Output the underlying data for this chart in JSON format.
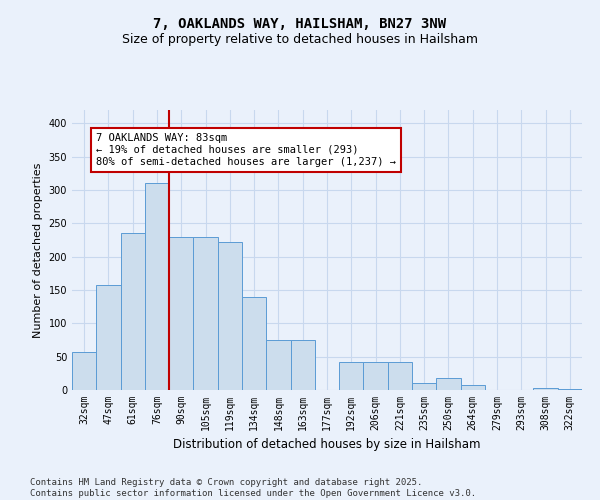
{
  "title_line1": "7, OAKLANDS WAY, HAILSHAM, BN27 3NW",
  "title_line2": "Size of property relative to detached houses in Hailsham",
  "xlabel": "Distribution of detached houses by size in Hailsham",
  "ylabel": "Number of detached properties",
  "categories": [
    "32sqm",
    "47sqm",
    "61sqm",
    "76sqm",
    "90sqm",
    "105sqm",
    "119sqm",
    "134sqm",
    "148sqm",
    "163sqm",
    "177sqm",
    "192sqm",
    "206sqm",
    "221sqm",
    "235sqm",
    "250sqm",
    "264sqm",
    "279sqm",
    "293sqm",
    "308sqm",
    "322sqm"
  ],
  "values": [
    57,
    157,
    235,
    310,
    230,
    230,
    222,
    140,
    75,
    75,
    0,
    42,
    42,
    42,
    10,
    18,
    7,
    0,
    0,
    3,
    2
  ],
  "bar_color": "#ccdded",
  "bar_edge_color": "#5b9bd5",
  "vline_x_idx": 3,
  "vline_color": "#c00000",
  "annotation_text": "7 OAKLANDS WAY: 83sqm\n← 19% of detached houses are smaller (293)\n80% of semi-detached houses are larger (1,237) →",
  "annotation_box_color": "#ffffff",
  "annotation_box_edge_color": "#c00000",
  "ylim": [
    0,
    420
  ],
  "yticks": [
    0,
    50,
    100,
    150,
    200,
    250,
    300,
    350,
    400
  ],
  "footer": "Contains HM Land Registry data © Crown copyright and database right 2025.\nContains public sector information licensed under the Open Government Licence v3.0.",
  "bg_color": "#eaf1fb",
  "plot_bg_color": "#eaf1fb",
  "grid_color": "#c8d8ee",
  "title_fontsize": 10,
  "subtitle_fontsize": 9,
  "tick_fontsize": 7,
  "ylabel_fontsize": 8,
  "xlabel_fontsize": 8.5,
  "footer_fontsize": 6.5,
  "ann_fontsize": 7.5
}
